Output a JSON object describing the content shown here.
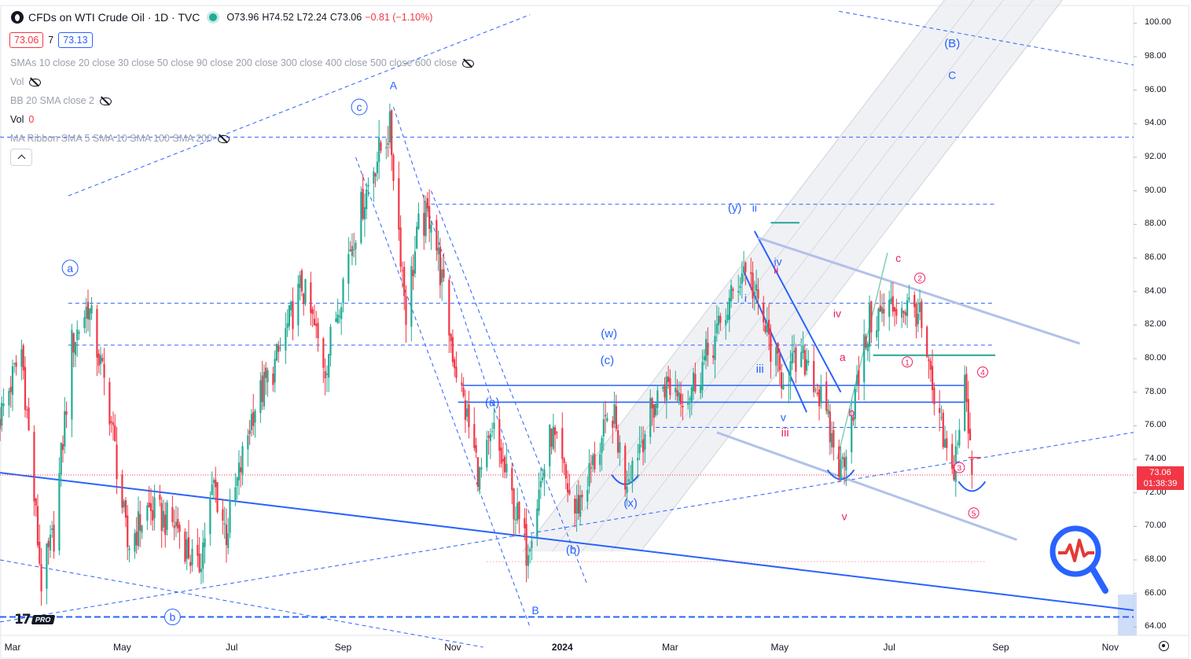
{
  "legend": {
    "symbol": "CFDs on WTI Crude Oil · 1D · TVC",
    "open": "O73.96",
    "high": "H74.52",
    "low": "L72.24",
    "close": "C73.06",
    "change": "−0.81 (−1.10%)"
  },
  "trade": {
    "sell": "73.06",
    "spread": "7",
    "buy": "73.13"
  },
  "indicators": {
    "smas": "SMAs 10 close 20 close 30 close 50 close 90 close 200 close 300 close 400 close 500 close 600 close",
    "vol_hidden": "Vol",
    "bb": "BB 20 SMA close 2",
    "vol": "Vol",
    "vol_value": "0",
    "ma_ribbon": "MA Ribbon SMA 5 SMA 10 SMA 100 SMA 200"
  },
  "last_price": {
    "price": "73.06",
    "countdown": "01:38:39"
  },
  "colors": {
    "up": "#22ab94",
    "down": "#f23645",
    "wave_blue": "#2962ff",
    "wave_red": "#e91e63",
    "channel": "#b2c1ea",
    "green_line": "#26a69a"
  },
  "chart_data": {
    "type": "candlestick",
    "symbol": "WTI Crude Oil",
    "interval": "1D",
    "y_ticks": [
      "100.00",
      "98.00",
      "96.00",
      "94.00",
      "92.00",
      "90.00",
      "88.00",
      "86.00",
      "84.00",
      "82.00",
      "80.00",
      "78.00",
      "76.00",
      "74.00",
      "72.00",
      "70.00",
      "68.00",
      "66.00",
      "64.00"
    ],
    "ylim": [
      63.5,
      101
    ],
    "x_ticks": [
      {
        "label": "Mar",
        "date": "2023-03-01"
      },
      {
        "label": "May",
        "date": "2023-05-01"
      },
      {
        "label": "Jul",
        "date": "2023-07-01"
      },
      {
        "label": "Sep",
        "date": "2023-09-01"
      },
      {
        "label": "Nov",
        "date": "2023-11-01"
      },
      {
        "label": "2024",
        "date": "2024-01-01"
      },
      {
        "label": "Mar",
        "date": "2024-03-01"
      },
      {
        "label": "May",
        "date": "2024-05-01"
      },
      {
        "label": "Jul",
        "date": "2024-07-01"
      },
      {
        "label": "Sep",
        "date": "2024-09-01"
      },
      {
        "label": "Nov",
        "date": "2024-11-01"
      }
    ],
    "xlim": [
      "2023-02-22",
      "2024-11-14"
    ],
    "price_path": [
      {
        "date": "2023-02-22",
        "close": 76.5
      },
      {
        "date": "2023-03-06",
        "close": 80.5
      },
      {
        "date": "2023-03-17",
        "close": 66.7
      },
      {
        "date": "2023-03-24",
        "close": 69.5
      },
      {
        "date": "2023-04-03",
        "close": 80.8
      },
      {
        "date": "2023-04-12",
        "close": 83.2
      },
      {
        "date": "2023-04-24",
        "close": 77.0
      },
      {
        "date": "2023-05-04",
        "close": 68.8
      },
      {
        "date": "2023-05-15",
        "close": 71.0
      },
      {
        "date": "2023-06-01",
        "close": 70.0
      },
      {
        "date": "2023-06-12",
        "close": 67.2
      },
      {
        "date": "2023-06-21",
        "close": 72.5
      },
      {
        "date": "2023-06-28",
        "close": 69.6
      },
      {
        "date": "2023-07-13",
        "close": 77.0
      },
      {
        "date": "2023-07-25",
        "close": 79.6
      },
      {
        "date": "2023-08-09",
        "close": 84.4
      },
      {
        "date": "2023-08-22",
        "close": 79.5
      },
      {
        "date": "2023-09-05",
        "close": 86.7
      },
      {
        "date": "2023-09-18",
        "close": 91.5
      },
      {
        "date": "2023-09-27",
        "close": 93.7
      },
      {
        "date": "2023-10-06",
        "close": 82.8
      },
      {
        "date": "2023-10-13",
        "close": 87.7
      },
      {
        "date": "2023-10-20",
        "close": 88.7
      },
      {
        "date": "2023-11-01",
        "close": 80.4
      },
      {
        "date": "2023-11-16",
        "close": 72.9
      },
      {
        "date": "2023-11-24",
        "close": 75.5
      },
      {
        "date": "2023-12-12",
        "close": 68.6
      },
      {
        "date": "2023-12-26",
        "close": 75.6
      },
      {
        "date": "2024-01-08",
        "close": 70.8
      },
      {
        "date": "2024-01-29",
        "close": 76.8
      },
      {
        "date": "2024-02-05",
        "close": 72.8
      },
      {
        "date": "2024-02-26",
        "close": 78.5
      },
      {
        "date": "2024-03-11",
        "close": 77.9
      },
      {
        "date": "2024-03-27",
        "close": 81.4
      },
      {
        "date": "2024-04-12",
        "close": 85.7
      },
      {
        "date": "2024-04-19",
        "close": 83.1
      },
      {
        "date": "2024-05-01",
        "close": 79.0
      },
      {
        "date": "2024-05-17",
        "close": 80.0
      },
      {
        "date": "2024-06-04",
        "close": 73.3
      },
      {
        "date": "2024-06-20",
        "close": 82.2
      },
      {
        "date": "2024-07-05",
        "close": 83.2
      },
      {
        "date": "2024-07-17",
        "close": 82.9
      },
      {
        "date": "2024-07-26",
        "close": 77.2
      },
      {
        "date": "2024-08-05",
        "close": 72.9
      },
      {
        "date": "2024-08-12",
        "close": 78.4
      },
      {
        "date": "2024-08-16",
        "close": 73.06
      }
    ],
    "horizontal_levels": [
      {
        "price": 93.2,
        "style": "dashed",
        "color": "#2962ff"
      },
      {
        "price": 89.2,
        "style": "dashed",
        "color": "#2962ff"
      },
      {
        "price": 83.3,
        "style": "dashed",
        "color": "#2962ff"
      },
      {
        "price": 80.8,
        "style": "dashed",
        "color": "#2962ff"
      },
      {
        "price": 78.4,
        "style": "solid",
        "color": "#2962ff"
      },
      {
        "price": 77.4,
        "style": "solid",
        "color": "#2962ff"
      },
      {
        "price": 75.9,
        "style": "dashed",
        "color": "#2962ff"
      },
      {
        "price": 64.6,
        "style": "dashed",
        "color": "#2962ff"
      },
      {
        "price": 80.2,
        "style": "solid",
        "color": "#26a69a"
      }
    ],
    "wave_labels": [
      {
        "text": "A",
        "date": "2023-09-29",
        "price": 96.3,
        "color": "#2962ff"
      },
      {
        "text": "c",
        "date": "2023-09-10",
        "price": 95.0,
        "color": "#2962ff",
        "circled": true
      },
      {
        "text": "a",
        "date": "2023-04-02",
        "price": 85.4,
        "color": "#2962ff",
        "circled": true
      },
      {
        "text": "b",
        "date": "2023-05-29",
        "price": 64.6,
        "color": "#2962ff",
        "circled": true
      },
      {
        "text": "B",
        "date": "2023-12-17",
        "price": 65.0,
        "color": "#2962ff"
      },
      {
        "text": "(a)",
        "date": "2023-11-23",
        "price": 77.4,
        "color": "#2962ff"
      },
      {
        "text": "(b)",
        "date": "2024-01-07",
        "price": 68.6,
        "color": "#2962ff"
      },
      {
        "text": "(c)",
        "date": "2024-01-26",
        "price": 79.9,
        "color": "#2962ff"
      },
      {
        "text": "(w)",
        "date": "2024-01-27",
        "price": 81.5,
        "color": "#2962ff"
      },
      {
        "text": "(x)",
        "date": "2024-02-08",
        "price": 71.4,
        "color": "#2962ff"
      },
      {
        "text": "(y)",
        "date": "2024-04-06",
        "price": 89.0,
        "color": "#2962ff"
      },
      {
        "text": "ii",
        "date": "2024-04-17",
        "price": 89.0,
        "color": "#2962ff"
      },
      {
        "text": "i",
        "date": "2024-04-12",
        "price": 83.6,
        "color": "#2962ff"
      },
      {
        "text": "iii",
        "date": "2024-04-20",
        "price": 79.4,
        "color": "#2962ff"
      },
      {
        "text": "iv",
        "date": "2024-04-30",
        "price": 85.8,
        "color": "#2962ff"
      },
      {
        "text": "v",
        "date": "2024-05-03",
        "price": 76.5,
        "color": "#2962ff"
      },
      {
        "text": "(B)",
        "date": "2024-08-05",
        "price": 98.8,
        "color": "#2962ff"
      },
      {
        "text": "C",
        "date": "2024-08-05",
        "price": 96.9,
        "color": "#2962ff"
      },
      {
        "text": "ii",
        "date": "2024-04-29",
        "price": 85.3,
        "color": "#e91e63"
      },
      {
        "text": "iii",
        "date": "2024-05-04",
        "price": 75.6,
        "color": "#e91e63"
      },
      {
        "text": "iv",
        "date": "2024-06-02",
        "price": 82.7,
        "color": "#e91e63"
      },
      {
        "text": "a",
        "date": "2024-06-05",
        "price": 80.1,
        "color": "#e91e63"
      },
      {
        "text": "b",
        "date": "2024-06-10",
        "price": 76.8,
        "color": "#e91e63"
      },
      {
        "text": "c",
        "date": "2024-07-06",
        "price": 86.0,
        "color": "#e91e63"
      },
      {
        "text": "v",
        "date": "2024-06-06",
        "price": 70.6,
        "color": "#e91e63"
      },
      {
        "text": "1",
        "date": "2024-07-11",
        "price": 79.8,
        "color": "#e91e63",
        "circled": true
      },
      {
        "text": "2",
        "date": "2024-07-18",
        "price": 84.8,
        "color": "#e91e63",
        "circled": true
      },
      {
        "text": "3",
        "date": "2024-08-09",
        "price": 73.5,
        "color": "#e91e63",
        "circled": true
      },
      {
        "text": "4",
        "date": "2024-08-22",
        "price": 79.2,
        "color": "#e91e63",
        "circled": true
      },
      {
        "text": "5",
        "date": "2024-08-17",
        "price": 70.8,
        "color": "#e91e63",
        "circled": true
      }
    ],
    "grid": false,
    "legend": "top-left"
  }
}
